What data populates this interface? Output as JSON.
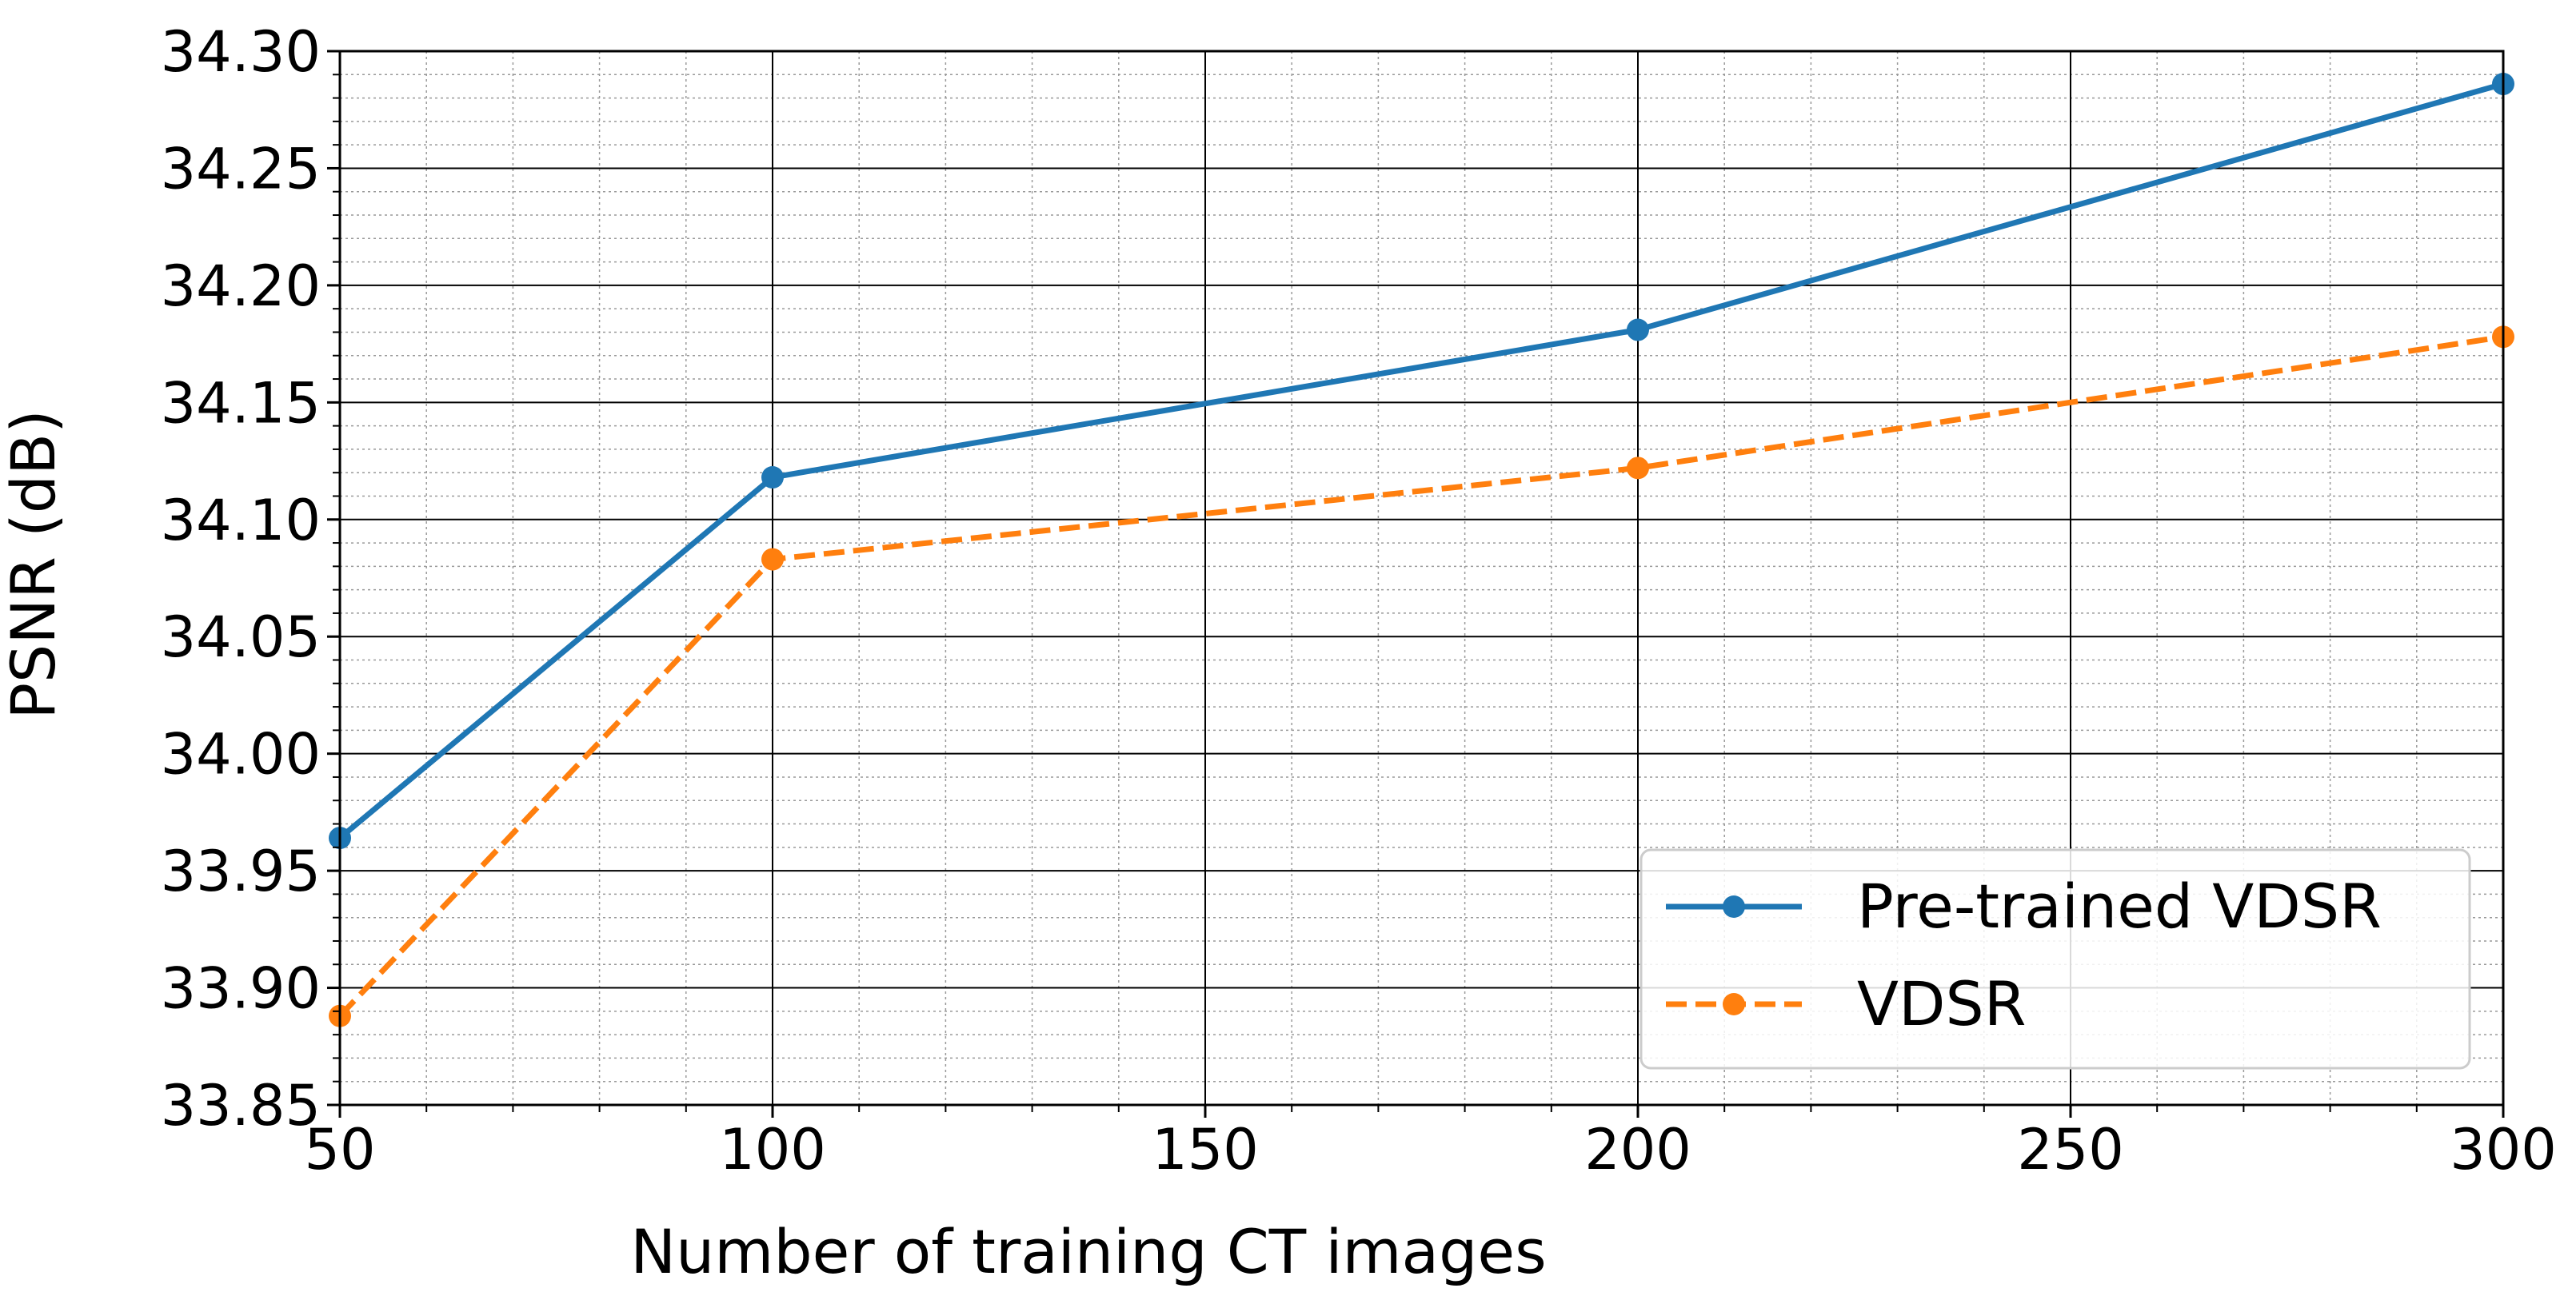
{
  "chart_data": {
    "type": "line",
    "title": "",
    "xlabel": "Number of training CT images",
    "ylabel": "PSNR (dB)",
    "xlim": [
      50,
      300
    ],
    "ylim": [
      33.85,
      34.3
    ],
    "xticks": [
      50,
      100,
      150,
      200,
      250,
      300
    ],
    "xtick_labels": [
      "50",
      "100",
      "150",
      "200",
      "250",
      "300"
    ],
    "yticks": [
      33.85,
      33.9,
      33.95,
      34.0,
      34.05,
      34.1,
      34.15,
      34.2,
      34.25,
      34.3
    ],
    "ytick_labels": [
      "33.85",
      "33.90",
      "33.95",
      "34.00",
      "34.05",
      "34.10",
      "34.15",
      "34.20",
      "34.25",
      "34.30"
    ],
    "grid": true,
    "minor_grid": true,
    "legend_position": "lower-right",
    "x": [
      50,
      100,
      200,
      300
    ],
    "series": [
      {
        "name": "Pre-trained VDSR",
        "values": [
          33.964,
          34.118,
          34.181,
          34.286
        ],
        "color": "#1f77b4",
        "line_style": "solid",
        "marker": "circle"
      },
      {
        "name": "VDSR",
        "values": [
          33.888,
          34.083,
          34.122,
          34.178
        ],
        "color": "#ff7f0e",
        "line_style": "dashed",
        "marker": "circle"
      }
    ]
  }
}
